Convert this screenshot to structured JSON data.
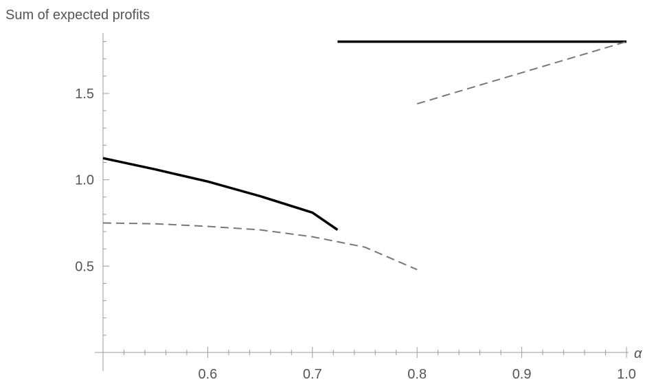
{
  "chart_data": {
    "type": "line",
    "title": "",
    "ylabel": "Sum of expected profits",
    "xlabel": "α",
    "xlim": [
      0.5,
      1.0
    ],
    "ylim": [
      0.0,
      1.85
    ],
    "origin": [
      0.5,
      0.0
    ],
    "grid": false,
    "legend": "none",
    "x_ticks": [
      0.6,
      0.7,
      0.8,
      0.9,
      1.0
    ],
    "x_tick_labels": [
      "0.6",
      "0.7",
      "0.8",
      "0.9",
      "1.0"
    ],
    "y_ticks": [
      0.5,
      1.0,
      1.5
    ],
    "y_tick_labels": [
      "0.5",
      "1.0",
      "1.5"
    ],
    "series": [
      {
        "style": "solid",
        "color": "#000000",
        "points": [
          [
            0.5,
            1.125
          ],
          [
            0.55,
            1.06
          ],
          [
            0.6,
            0.99
          ],
          [
            0.65,
            0.905
          ],
          [
            0.7,
            0.81
          ],
          [
            0.724,
            0.71
          ]
        ]
      },
      {
        "style": "solid",
        "color": "#000000",
        "points": [
          [
            0.724,
            1.8
          ],
          [
            1.0,
            1.8
          ]
        ]
      },
      {
        "style": "dashed",
        "color": "#777777",
        "points": [
          [
            0.5,
            0.75
          ],
          [
            0.55,
            0.745
          ],
          [
            0.6,
            0.73
          ],
          [
            0.65,
            0.71
          ],
          [
            0.7,
            0.67
          ],
          [
            0.75,
            0.61
          ],
          [
            0.8,
            0.48
          ]
        ]
      },
      {
        "style": "dashed",
        "color": "#777777",
        "points": [
          [
            0.8,
            1.44
          ],
          [
            0.85,
            1.53
          ],
          [
            0.9,
            1.62
          ],
          [
            0.95,
            1.71
          ],
          [
            1.0,
            1.8
          ]
        ]
      }
    ]
  }
}
